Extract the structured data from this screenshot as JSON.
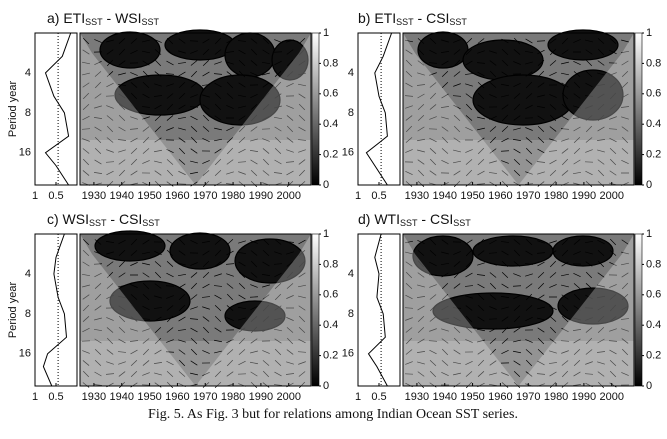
{
  "caption": "Fig. 5. As Fig. 3 but for relations among Indian Ocean SST series.",
  "chart_data": [
    {
      "type": "wavelet-coherence",
      "title_parts": [
        "a) ETI",
        "SST",
        " - WSI",
        "SST"
      ],
      "ylabel": "Period year",
      "xlim": [
        1925,
        2008
      ],
      "xticks": [
        1930,
        1940,
        1950,
        1960,
        1970,
        1980,
        1990,
        2000
      ],
      "ylim": [
        2,
        28
      ],
      "yticks": [
        4,
        8,
        16
      ],
      "ylog": true,
      "clim": [
        0,
        1
      ],
      "cticks": [
        0,
        0.2,
        0.4,
        0.6,
        0.8,
        1
      ],
      "side": {
        "xlim": [
          1,
          0
        ],
        "xticks": [
          1,
          0.5
        ],
        "period": [
          2,
          3,
          4,
          6,
          8,
          12,
          16,
          20,
          28
        ],
        "values": [
          0.15,
          0.35,
          0.75,
          0.55,
          0.3,
          0.2,
          0.75,
          0.5,
          0.2
        ],
        "significance": 0.45
      }
    },
    {
      "type": "wavelet-coherence",
      "title_parts": [
        "b) ETI",
        "SST",
        " - CSI",
        "SST"
      ],
      "xlim": [
        1925,
        2008
      ],
      "xticks": [
        1930,
        1940,
        1950,
        1960,
        1970,
        1980,
        1990,
        2000
      ],
      "ylim": [
        2,
        28
      ],
      "yticks": [
        4,
        8,
        16
      ],
      "ylog": true,
      "clim": [
        0,
        1
      ],
      "cticks": [
        0,
        0.2,
        0.4,
        0.6,
        0.8,
        1
      ],
      "side": {
        "xlim": [
          1,
          0
        ],
        "xticks": [
          1,
          0.5
        ],
        "period": [
          2,
          3,
          4,
          6,
          8,
          12,
          16,
          20,
          28
        ],
        "values": [
          0.2,
          0.4,
          0.6,
          0.5,
          0.35,
          0.3,
          0.8,
          0.6,
          0.3
        ],
        "significance": 0.45
      }
    },
    {
      "type": "wavelet-coherence",
      "title_parts": [
        "c) WSI",
        "SST",
        " - CSI",
        "SST"
      ],
      "ylabel": "Period year",
      "xlim": [
        1925,
        2008
      ],
      "xticks": [
        1930,
        1940,
        1950,
        1960,
        1970,
        1980,
        1990,
        2000
      ],
      "ylim": [
        2,
        28
      ],
      "yticks": [
        4,
        8,
        16
      ],
      "ylog": true,
      "clim": [
        0,
        1
      ],
      "cticks": [
        0,
        0.2,
        0.4,
        0.6,
        0.8,
        1
      ],
      "side": {
        "xlim": [
          1,
          0
        ],
        "xticks": [
          1,
          0.5
        ],
        "period": [
          2,
          3,
          4,
          6,
          8,
          12,
          16,
          20,
          28
        ],
        "values": [
          0.3,
          0.5,
          0.55,
          0.45,
          0.3,
          0.25,
          0.7,
          0.8,
          0.6
        ],
        "significance": 0.45
      }
    },
    {
      "type": "wavelet-coherence",
      "title_parts": [
        "d) WTI",
        "SST",
        " - CSI",
        "SST"
      ],
      "xlim": [
        1925,
        2008
      ],
      "xticks": [
        1930,
        1940,
        1950,
        1960,
        1970,
        1980,
        1990,
        2000
      ],
      "ylim": [
        2,
        28
      ],
      "yticks": [
        4,
        8,
        16
      ],
      "ylog": true,
      "clim": [
        0,
        1
      ],
      "cticks": [
        0,
        0.2,
        0.4,
        0.6,
        0.8,
        1
      ],
      "side": {
        "xlim": [
          1,
          0
        ],
        "xticks": [
          1,
          0.5
        ],
        "period": [
          2,
          3,
          4,
          6,
          8,
          12,
          16,
          20,
          28
        ],
        "values": [
          0.45,
          0.6,
          0.5,
          0.55,
          0.4,
          0.35,
          0.75,
          0.55,
          0.3
        ],
        "significance": 0.45
      }
    }
  ]
}
